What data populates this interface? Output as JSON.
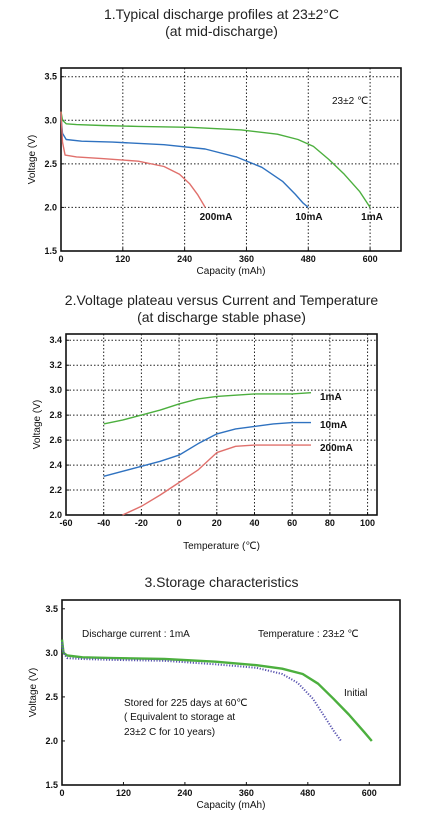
{
  "chart_data": [
    {
      "type": "line",
      "title_lines": [
        "1.Typical discharge profiles at 23±2°C",
        "(at mid-discharge)"
      ],
      "xlabel": "Capacity (mAh)",
      "ylabel": "Voltage (V)",
      "xlim": [
        0,
        660
      ],
      "ylim": [
        1.5,
        3.6
      ],
      "xticks": [
        0,
        120,
        240,
        360,
        480,
        600
      ],
      "xtick_labels": [
        "0",
        "120",
        "240",
        "360",
        "480",
        "600"
      ],
      "yticks": [
        1.5,
        2.0,
        2.5,
        3.0,
        3.5
      ],
      "ytick_labels": [
        "1.5",
        "2.0",
        "2.5",
        "3.0",
        "3.5"
      ],
      "grid": true,
      "annotation": "23±2 ℃",
      "series": [
        {
          "name": "1mA",
          "color": "#4caf3e",
          "x": [
            0,
            3,
            10,
            30,
            80,
            150,
            250,
            350,
            420,
            460,
            490,
            520,
            550,
            580,
            600
          ],
          "y": [
            3.1,
            3.0,
            2.96,
            2.95,
            2.94,
            2.93,
            2.92,
            2.89,
            2.84,
            2.78,
            2.7,
            2.55,
            2.38,
            2.18,
            2.0
          ]
        },
        {
          "name": "10mA",
          "color": "#2f72c0",
          "x": [
            0,
            3,
            10,
            40,
            100,
            200,
            280,
            340,
            390,
            430,
            455,
            470,
            480
          ],
          "y": [
            3.05,
            2.85,
            2.78,
            2.76,
            2.75,
            2.72,
            2.67,
            2.58,
            2.46,
            2.3,
            2.15,
            2.05,
            2.0
          ]
        },
        {
          "name": "200mA",
          "color": "#e0706c",
          "x": [
            0,
            3,
            8,
            30,
            80,
            150,
            200,
            230,
            250,
            265,
            275,
            280
          ],
          "y": [
            3.1,
            2.75,
            2.6,
            2.58,
            2.56,
            2.53,
            2.47,
            2.38,
            2.27,
            2.15,
            2.05,
            2.0
          ]
        }
      ]
    },
    {
      "type": "line",
      "title_lines": [
        "2.Voltage plateau versus Current and Temperature",
        "(at discharge stable phase)"
      ],
      "xlabel": "Temperature (℃)",
      "ylabel": "Voltage (V)",
      "xlim": [
        -60,
        105
      ],
      "ylim": [
        2.0,
        3.45
      ],
      "xticks": [
        -60,
        -40,
        -20,
        0,
        20,
        40,
        60,
        80,
        100
      ],
      "xtick_labels": [
        "-60",
        "-40",
        "-20",
        "0",
        "20",
        "40",
        "60",
        "80",
        "100"
      ],
      "yticks": [
        2.0,
        2.2,
        2.4,
        2.6,
        2.8,
        3.0,
        3.2,
        3.4
      ],
      "ytick_labels": [
        "2.0",
        "2.2",
        "2.4",
        "2.6",
        "2.8",
        "3.0",
        "3.2",
        "3.4"
      ],
      "grid": true,
      "series": [
        {
          "name": "1mA",
          "color": "#4caf3e",
          "x": [
            -40,
            -30,
            -20,
            -10,
            0,
            10,
            20,
            30,
            40,
            50,
            60,
            70
          ],
          "y": [
            2.73,
            2.76,
            2.8,
            2.84,
            2.89,
            2.93,
            2.95,
            2.96,
            2.97,
            2.97,
            2.97,
            2.98
          ]
        },
        {
          "name": "10mA",
          "color": "#2f72c0",
          "x": [
            -40,
            -30,
            -20,
            -10,
            0,
            10,
            20,
            30,
            40,
            50,
            60,
            70
          ],
          "y": [
            2.31,
            2.35,
            2.39,
            2.43,
            2.48,
            2.57,
            2.65,
            2.69,
            2.71,
            2.73,
            2.74,
            2.74
          ]
        },
        {
          "name": "200mA",
          "color": "#e0706c",
          "x": [
            -30,
            -20,
            -10,
            0,
            10,
            20,
            30,
            40,
            50,
            60,
            70
          ],
          "y": [
            2.0,
            2.07,
            2.16,
            2.26,
            2.36,
            2.5,
            2.55,
            2.56,
            2.56,
            2.56,
            2.56
          ]
        }
      ]
    },
    {
      "type": "line",
      "title_lines": [
        "3.Storage characteristics"
      ],
      "xlabel": "Capacity (mAh)",
      "ylabel": "Voltage (V)",
      "xlim": [
        0,
        660
      ],
      "ylim": [
        1.5,
        3.6
      ],
      "xticks": [
        0,
        120,
        240,
        360,
        480,
        600
      ],
      "xtick_labels": [
        "0",
        "120",
        "240",
        "360",
        "480",
        "600"
      ],
      "yticks": [
        1.5,
        2.0,
        2.5,
        3.0,
        3.5
      ],
      "ytick_labels": [
        "1.5",
        "2.0",
        "2.5",
        "3.0",
        "3.5"
      ],
      "grid": false,
      "annotations": {
        "discharge_current": "Discharge current : 1mA",
        "temperature": "Temperature : 23±2 ℃",
        "stored_line1": "Stored for 225 days at 60℃",
        "stored_line2": "( Equivalent to storage at",
        "stored_line3": "23±2 C for 10 years)",
        "initial": "Initial"
      },
      "series": [
        {
          "name": "Initial",
          "color": "#4caf3e",
          "style": "solid",
          "x": [
            0,
            3,
            10,
            40,
            100,
            200,
            300,
            380,
            430,
            470,
            500,
            530,
            560,
            590,
            605
          ],
          "y": [
            3.15,
            3.0,
            2.97,
            2.95,
            2.94,
            2.93,
            2.9,
            2.86,
            2.82,
            2.76,
            2.65,
            2.48,
            2.3,
            2.1,
            2.0
          ]
        },
        {
          "name": "Stored",
          "color": "#5a55b0",
          "style": "dotted",
          "x": [
            0,
            3,
            10,
            40,
            100,
            200,
            300,
            380,
            430,
            460,
            490,
            510,
            530,
            545
          ],
          "y": [
            3.12,
            3.0,
            2.94,
            2.93,
            2.92,
            2.91,
            2.87,
            2.83,
            2.76,
            2.66,
            2.48,
            2.3,
            2.12,
            2.0
          ]
        }
      ]
    }
  ]
}
